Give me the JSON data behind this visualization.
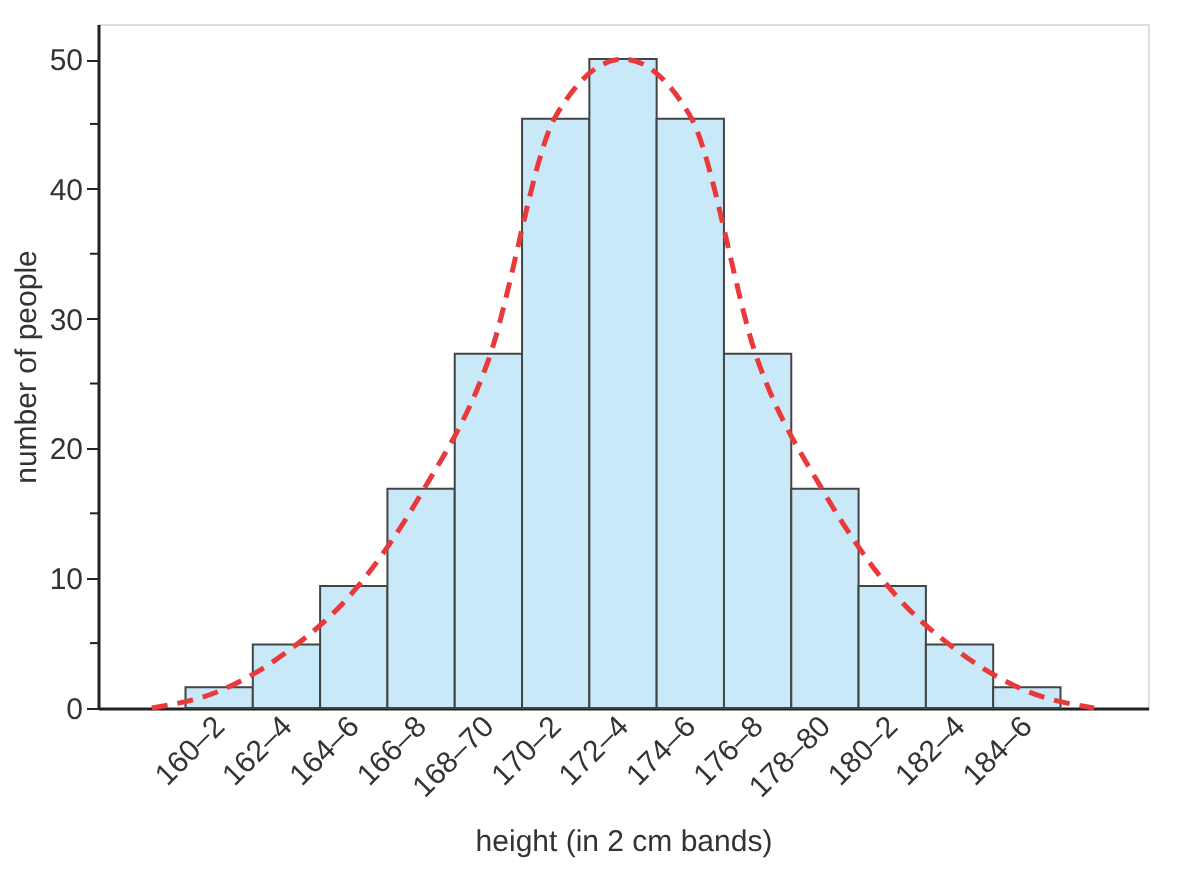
{
  "chart_data": {
    "type": "bar",
    "xlabel": "height (in 2 cm bands)",
    "ylabel": "number of people",
    "categories": [
      null,
      "160–2",
      "162–4",
      "164–6",
      "166–8",
      "168–70",
      "170–2",
      "172–4",
      "174–6",
      "176–8",
      "178–80",
      "180–2",
      "182–4",
      "184–6",
      null
    ],
    "series": [
      {
        "color": "#c9e9f9",
        "values": [
          null,
          1.6,
          4.9,
          9.4,
          16.9,
          27.3,
          45.4,
          50,
          45.4,
          27.3,
          16.9,
          9.4,
          4.9,
          1.6,
          null
        ]
      },
      {
        "type": "line",
        "color": "#e8393b",
        "line_style": "dashed",
        "values": [
          0,
          1.3,
          4.3,
          9,
          16.5,
          26.8,
          45.6,
          50,
          45.6,
          26.8,
          16.5,
          9,
          4.3,
          1.3,
          0
        ]
      }
    ],
    "ylim": [
      0,
      52.7
    ],
    "yticks": [
      0,
      {
        "value": 5,
        "label": null
      },
      10,
      {
        "value": 15,
        "label": null
      },
      20,
      {
        "value": 25,
        "label": null
      },
      30,
      {
        "value": 35,
        "label": null
      },
      40,
      {
        "value": 45,
        "label": null
      },
      50
    ],
    "grid": false
  }
}
